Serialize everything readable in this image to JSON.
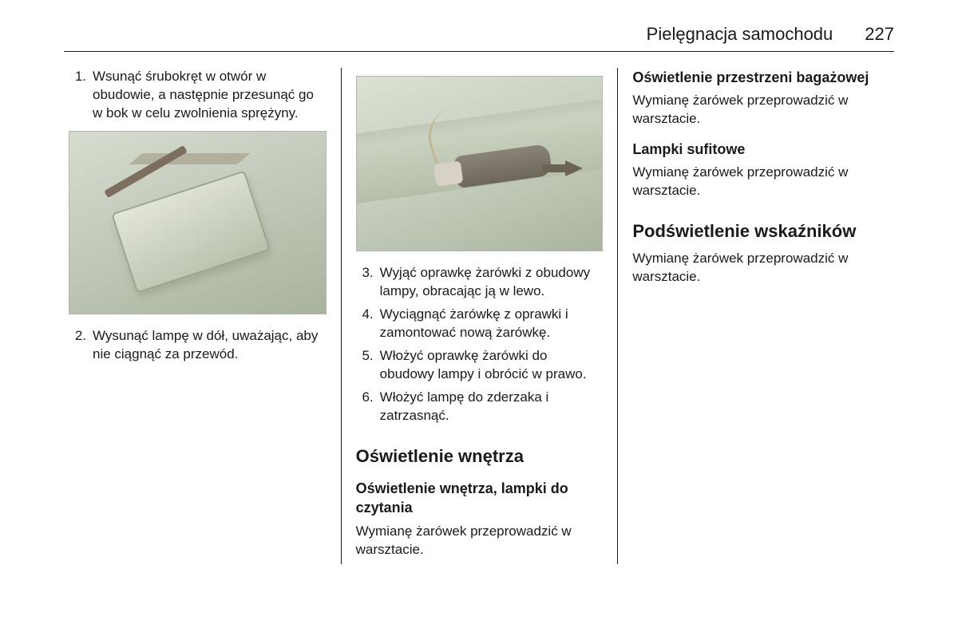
{
  "header": {
    "title": "Pielęgnacja samochodu",
    "page_number": "227"
  },
  "col1": {
    "steps": [
      {
        "n": "1.",
        "t": "Wsunąć śrubokręt w otwór w obudowie, a następnie przesunąć go w bok w celu zwolnienia sprężyny."
      },
      {
        "n": "2.",
        "t": "Wysunąć lampę w dół, uważając, aby nie ciągnąć za przewód."
      }
    ],
    "figure_alt": "Ilustracja: zdejmowanie klosza lampy za pomocą śrubokręta"
  },
  "col2": {
    "figure_alt": "Ilustracja: wyjmowanie oprawki żarówki z obudowy lampy",
    "steps": [
      {
        "n": "3.",
        "t": "Wyjąć oprawkę żarówki z obudowy lampy, obracając ją w lewo."
      },
      {
        "n": "4.",
        "t": "Wyciągnąć żarówkę z oprawki i zamontować nową żarówkę."
      },
      {
        "n": "5.",
        "t": "Włożyć oprawkę żarówki do obudowy lampy i obrócić w prawo."
      },
      {
        "n": "6.",
        "t": "Włożyć lampę do zderzaka i zatrzasnąć."
      }
    ],
    "section_title": "Oświetlenie wnętrza",
    "subsection_title": "Oświetlenie wnętrza, lampki do czytania",
    "body": "Wymianę żarówek przeprowadzić w warsztacie."
  },
  "col3": {
    "sub1_title": "Oświetlenie przestrzeni bagażowej",
    "sub1_body": "Wymianę żarówek przeprowadzić w warsztacie.",
    "sub2_title": "Lampki sufitowe",
    "sub2_body": "Wymianę żarówek przeprowadzić w warsztacie.",
    "section_title": "Podświetlenie wskaźników",
    "section_body": "Wymianę żarówek przeprowadzić w warsztacie."
  },
  "colors": {
    "text": "#1a1a1a",
    "rule": "#1a1a1a",
    "figure_bg_from": "#d6dcce",
    "figure_bg_to": "#a8b39d",
    "accent": "#6a6356"
  },
  "typography": {
    "body_fontsize_pt": 13,
    "h2_fontsize_pt": 17,
    "h3_fontsize_pt": 14,
    "header_fontsize_pt": 17,
    "font_family": "Arial"
  }
}
